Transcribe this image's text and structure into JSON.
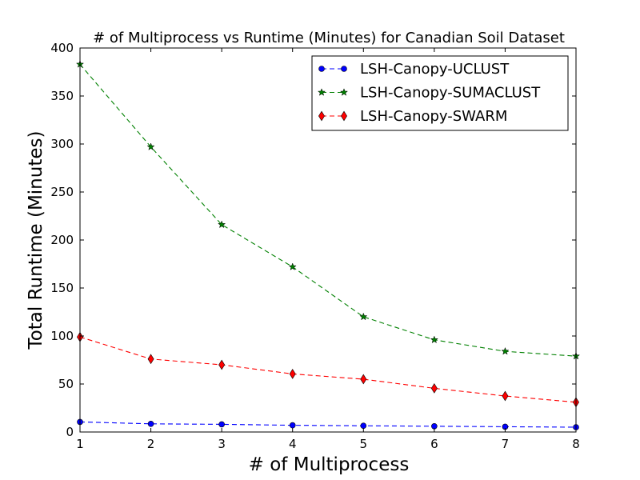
{
  "chart_data": {
    "type": "line",
    "title": "# of Multiprocess vs Runtime (Minutes) for Canadian Soil Dataset",
    "xlabel": "# of Multiprocess",
    "ylabel": "Total Runtime (Minutes)",
    "x": [
      1,
      2,
      3,
      4,
      5,
      6,
      7,
      8
    ],
    "xlim": [
      1,
      8
    ],
    "ylim": [
      0,
      400
    ],
    "xticks": [
      "1",
      "2",
      "3",
      "4",
      "5",
      "6",
      "7",
      "8"
    ],
    "yticks": [
      "0",
      "50",
      "100",
      "150",
      "200",
      "250",
      "300",
      "350",
      "400"
    ],
    "grid": false,
    "legend_position": "top-right",
    "series": [
      {
        "name": "LSH-Canopy-UCLUST",
        "color": "#0000ff",
        "marker": "circle",
        "linestyle": "dashed",
        "values": [
          10.5,
          8.5,
          8,
          7,
          6.5,
          6,
          5.5,
          5
        ]
      },
      {
        "name": "LSH-Canopy-SUMACLUST",
        "color": "#008000",
        "marker": "star",
        "linestyle": "dashed",
        "values": [
          383,
          297,
          216,
          172,
          120,
          96,
          84,
          79
        ]
      },
      {
        "name": "LSH-Canopy-SWARM",
        "color": "#ff0000",
        "marker": "diamond",
        "linestyle": "dashed",
        "values": [
          99,
          76,
          70,
          60.5,
          55,
          45.5,
          37.5,
          31
        ]
      }
    ]
  }
}
